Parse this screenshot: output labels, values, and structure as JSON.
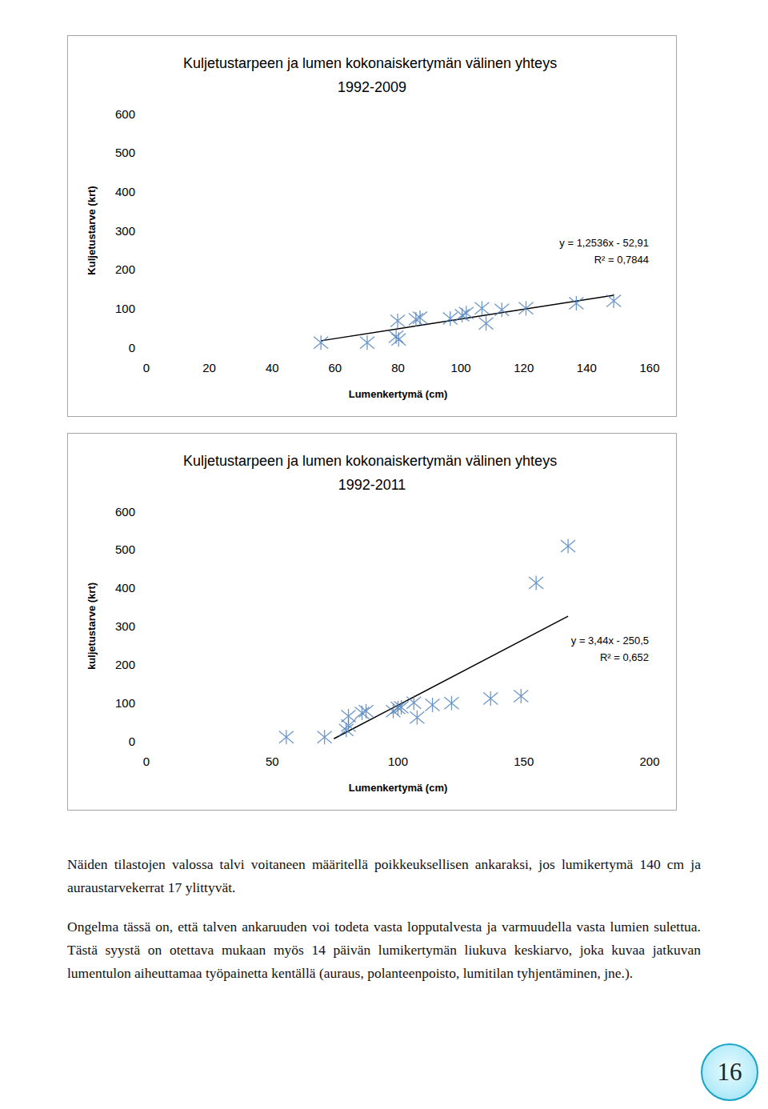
{
  "chart_data": [
    {
      "type": "scatter",
      "title": "Kuljetustarpeen ja lumen kokonaiskertymän välinen yhteys 1992-2009",
      "x_label": "Lumenkertymä (cm)",
      "y_label": "Kuljetustarve (krt)",
      "x": [
        55.5,
        70.2,
        79.9,
        79.4,
        80.2,
        85.7,
        87.0,
        96.6,
        100.4,
        101.7,
        106.7,
        108.0,
        113.0,
        120.7,
        136.7,
        148.6
      ],
      "values": [
        12,
        12,
        68,
        27,
        20,
        72,
        76,
        74,
        82,
        88,
        100,
        61,
        96,
        100,
        113,
        119
      ],
      "color": "#4a7ebb",
      "marker": "asterisk",
      "xlim": [
        0,
        160
      ],
      "xticks": [
        0,
        20,
        40,
        60,
        80,
        100,
        120,
        140,
        160
      ],
      "ylim": [
        0,
        600
      ],
      "yticks": [
        0,
        100,
        200,
        300,
        400,
        500,
        600
      ],
      "grid": false,
      "trendline": {
        "x": [
          55.5,
          148.6
        ],
        "values": [
          16.7,
          133.4
        ],
        "color": "#000000"
      },
      "annotations": [
        "y = 1,2536x - 52,91",
        "R² = 0,7844"
      ]
    },
    {
      "type": "scatter",
      "title": "Kuljetustarpeen ja lumen kokonaiskertymän välinen yhteys 1992-2011",
      "x_label": "Lumenkertymä (cm)",
      "y_label": "kuljetustarve (krt)",
      "x": [
        55.6,
        70.8,
        79.4,
        80.3,
        80.3,
        85.7,
        87.3,
        98.1,
        100.0,
        101.3,
        106.3,
        107.6,
        113.7,
        121.3,
        136.8,
        148.9,
        154.9,
        167.6
      ],
      "values": [
        10,
        10,
        29,
        40,
        65,
        73,
        78,
        78,
        86,
        88,
        100,
        61,
        94,
        99,
        111,
        117,
        413,
        509
      ],
      "color": "#4a7ebb",
      "marker": "asterisk",
      "xlim": [
        0,
        200
      ],
      "xticks": [
        0,
        50,
        100,
        150,
        200
      ],
      "ylim": [
        0,
        600
      ],
      "yticks": [
        0,
        100,
        200,
        300,
        400,
        500,
        600
      ],
      "grid": false,
      "trendline": {
        "x": [
          74.5,
          167.6
        ],
        "values": [
          5.8,
          326.0
        ],
        "color": "#000000"
      },
      "annotations": [
        "y = 3,44x - 250,5",
        "R² = 0,652"
      ]
    }
  ],
  "paragraphs": [
    "Näiden tilastojen valossa talvi voitaneen määritellä poikkeuksellisen ankaraksi, jos lumikertymä 140 cm ja auraustarvekerrat 17 ylittyvät.",
    "Ongelma tässä on, että talven ankaruuden voi todeta vasta lopputalvesta ja varmuudella vasta lumien sulettua. Tästä syystä on otettava mukaan myös 14 päivän lumikertymän liukuva keskiarvo, joka kuvaa jatkuvan lumentulon aiheuttamaa työpainetta kentällä (auraus, polanteenpoisto, lumitilan tyhjentäminen, jne.)."
  ],
  "page_number": 16
}
